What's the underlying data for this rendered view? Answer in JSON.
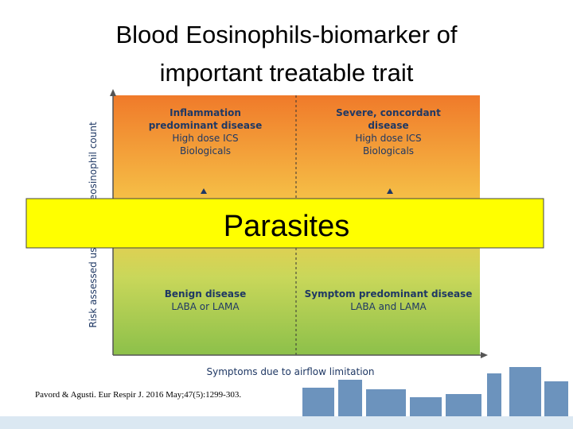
{
  "title": [
    "Blood Eosinophils-biomarker of",
    "important treatable trait"
  ],
  "y_axis_label": "Risk assessed using blood eosinophil count",
  "x_axis_label": "Symptoms due to airflow limitation",
  "quadrants": [
    {
      "heading": [
        "Inflammation",
        "predominant disease"
      ],
      "treatment": [
        "High dose ICS",
        "Biologicals"
      ]
    },
    {
      "heading": [
        "Severe, concordant",
        "disease"
      ],
      "treatment": [
        "High dose ICS",
        "Biologicals"
      ]
    },
    {
      "heading": [
        "Benign disease"
      ],
      "treatment": [
        "LABA or LAMA"
      ]
    },
    {
      "heading": [
        "Symptom predominant disease"
      ],
      "treatment": [
        "LABA and LAMA"
      ]
    }
  ],
  "overlay": "Parasites",
  "citation": "Pavord & Agusti. Eur Respir J. 2016 May;47(5):1299-303."
}
